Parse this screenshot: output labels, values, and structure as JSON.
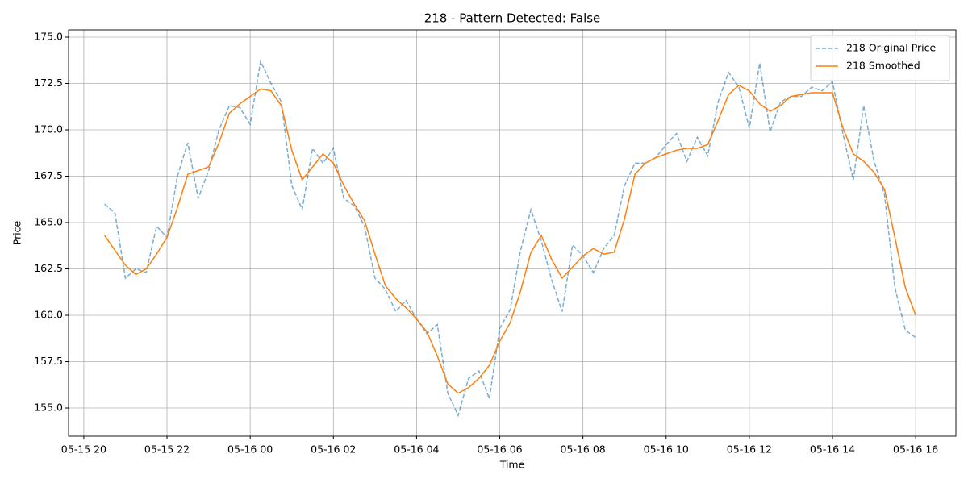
{
  "chart_data": {
    "type": "line",
    "title": "218 - Pattern Detected: False",
    "x_label": "Time",
    "y_label": "Price",
    "x": [
      "05-15 20:30",
      "05-15 20:45",
      "05-15 21:00",
      "05-15 21:15",
      "05-15 21:30",
      "05-15 21:45",
      "05-15 22:00",
      "05-15 22:15",
      "05-15 22:30",
      "05-15 22:45",
      "05-15 23:00",
      "05-15 23:15",
      "05-15 23:30",
      "05-15 23:45",
      "05-16 00:00",
      "05-16 00:15",
      "05-16 00:30",
      "05-16 00:45",
      "05-16 01:00",
      "05-16 01:15",
      "05-16 01:30",
      "05-16 01:45",
      "05-16 02:00",
      "05-16 02:15",
      "05-16 02:30",
      "05-16 02:45",
      "05-16 03:00",
      "05-16 03:15",
      "05-16 03:30",
      "05-16 03:45",
      "05-16 04:00",
      "05-16 04:15",
      "05-16 04:30",
      "05-16 04:45",
      "05-16 05:00",
      "05-16 05:15",
      "05-16 05:30",
      "05-16 05:45",
      "05-16 06:00",
      "05-16 06:15",
      "05-16 06:30",
      "05-16 06:45",
      "05-16 07:00",
      "05-16 07:15",
      "05-16 07:30",
      "05-16 07:45",
      "05-16 08:00",
      "05-16 08:15",
      "05-16 08:30",
      "05-16 08:45",
      "05-16 09:00",
      "05-16 09:15",
      "05-16 09:30",
      "05-16 09:45",
      "05-16 10:00",
      "05-16 10:15",
      "05-16 10:30",
      "05-16 10:45",
      "05-16 11:00",
      "05-16 11:15",
      "05-16 11:30",
      "05-16 11:45",
      "05-16 12:00",
      "05-16 12:15",
      "05-16 12:30",
      "05-16 12:45",
      "05-16 13:00",
      "05-16 13:15",
      "05-16 13:30",
      "05-16 13:45",
      "05-16 14:00",
      "05-16 14:15",
      "05-16 14:30",
      "05-16 14:45",
      "05-16 15:00",
      "05-16 15:15",
      "05-16 15:30",
      "05-16 15:45",
      "05-16 16:00"
    ],
    "series": [
      {
        "name": "218 Original Price",
        "color": "#1f77b4",
        "dashed": true,
        "values": [
          166.0,
          165.5,
          162.0,
          162.5,
          162.3,
          164.8,
          164.2,
          167.5,
          169.3,
          166.3,
          167.8,
          170.0,
          171.3,
          171.2,
          170.3,
          173.7,
          172.5,
          171.5,
          167.0,
          165.7,
          169.0,
          168.2,
          169.0,
          166.3,
          165.9,
          164.8,
          162.0,
          161.4,
          160.2,
          160.8,
          159.8,
          159.0,
          159.5,
          155.8,
          154.6,
          156.6,
          157.0,
          155.5,
          159.3,
          160.3,
          163.5,
          165.7,
          164.0,
          161.9,
          160.2,
          163.8,
          163.2,
          162.3,
          163.6,
          164.3,
          167.0,
          168.2,
          168.2,
          168.5,
          169.2,
          169.8,
          168.3,
          169.6,
          168.6,
          171.5,
          173.1,
          172.3,
          170.1,
          173.6,
          169.9,
          171.5,
          171.8,
          171.8,
          172.3,
          172.1,
          172.6,
          169.8,
          167.3,
          171.3,
          168.3,
          166.5,
          161.5,
          159.2,
          158.8
        ]
      },
      {
        "name": "218 Smoothed",
        "color": "#ff7f0e",
        "dashed": false,
        "values": [
          164.3,
          163.5,
          162.7,
          162.2,
          162.5,
          163.3,
          164.2,
          165.8,
          167.6,
          167.8,
          168.0,
          169.3,
          170.9,
          171.4,
          171.8,
          172.2,
          172.1,
          171.3,
          168.9,
          167.3,
          168.0,
          168.7,
          168.2,
          167.0,
          166.0,
          165.1,
          163.3,
          161.6,
          160.9,
          160.4,
          159.8,
          159.1,
          157.8,
          156.3,
          155.8,
          156.1,
          156.6,
          157.3,
          158.6,
          159.6,
          161.3,
          163.4,
          164.3,
          163.0,
          162.0,
          162.6,
          163.2,
          163.6,
          163.3,
          163.4,
          165.2,
          167.6,
          168.2,
          168.5,
          168.7,
          168.9,
          169.0,
          169.0,
          169.2,
          170.5,
          171.9,
          172.4,
          172.1,
          171.4,
          171.0,
          171.3,
          171.8,
          171.9,
          172.0,
          172.0,
          172.0,
          170.1,
          168.7,
          168.3,
          167.7,
          166.8,
          164.2,
          161.5,
          160.0
        ]
      }
    ],
    "xlim": [
      "05-15 19:38",
      "05-16 16:58"
    ],
    "xticks": [
      "05-15 20",
      "05-15 22",
      "05-16 00",
      "05-16 02",
      "05-16 04",
      "05-16 06",
      "05-16 08",
      "05-16 10",
      "05-16 12",
      "05-16 14",
      "05-16 16"
    ],
    "ylim": [
      153.48,
      175.39
    ],
    "yticks": [
      {
        "value": 155,
        "label": "155.0"
      },
      157.5,
      {
        "value": 160,
        "label": "160.0"
      },
      162.5,
      {
        "value": 165,
        "label": "165.0"
      },
      167.5,
      {
        "value": 170,
        "label": "170.0"
      },
      172.5,
      {
        "value": 175,
        "label": "175.0"
      }
    ],
    "grid": true,
    "legend": "upper right"
  }
}
